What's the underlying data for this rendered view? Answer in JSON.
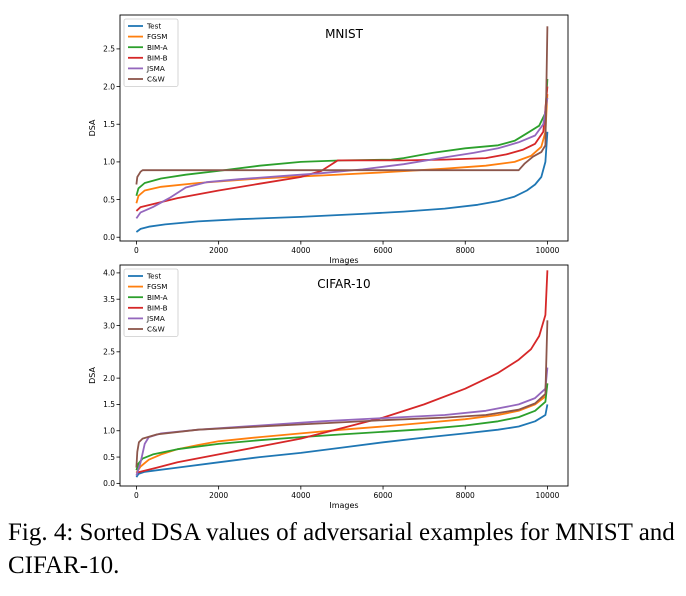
{
  "caption": {
    "label": "Fig. 4:",
    "text": "Sorted DSA values of adversarial examples for MNIST and CIFAR-10."
  },
  "colors": {
    "Test": "#1f77b4",
    "FGSM": "#ff7f0e",
    "BIM-A": "#2ca02c",
    "BIM-B": "#d62728",
    "JSMA": "#9467bd",
    "C&W": "#8c564b"
  },
  "chart_data": [
    {
      "type": "line",
      "title": "MNIST",
      "xlabel": "Images",
      "ylabel": "DSA",
      "xlim": [
        -400,
        10500
      ],
      "ylim": [
        -0.05,
        2.95
      ],
      "xticks": [
        0,
        2000,
        4000,
        6000,
        8000,
        10000
      ],
      "yticks": [
        0.0,
        0.5,
        1.0,
        1.5,
        2.0,
        2.5
      ],
      "ytick_labels": [
        "0.0",
        "0.5",
        "1.0",
        "1.5",
        "2.0",
        "2.5"
      ],
      "legend": "top-left",
      "grid": false,
      "series": [
        {
          "name": "Test",
          "points": [
            [
              0,
              0.07
            ],
            [
              100,
              0.11
            ],
            [
              300,
              0.14
            ],
            [
              700,
              0.17
            ],
            [
              1500,
              0.21
            ],
            [
              2500,
              0.24
            ],
            [
              4000,
              0.27
            ],
            [
              5500,
              0.31
            ],
            [
              6500,
              0.34
            ],
            [
              7500,
              0.38
            ],
            [
              8300,
              0.43
            ],
            [
              8800,
              0.48
            ],
            [
              9200,
              0.54
            ],
            [
              9500,
              0.62
            ],
            [
              9700,
              0.7
            ],
            [
              9850,
              0.8
            ],
            [
              9950,
              1.0
            ],
            [
              10000,
              1.4
            ]
          ]
        },
        {
          "name": "FGSM",
          "points": [
            [
              0,
              0.45
            ],
            [
              50,
              0.55
            ],
            [
              200,
              0.62
            ],
            [
              600,
              0.67
            ],
            [
              1500,
              0.72
            ],
            [
              3000,
              0.78
            ],
            [
              4500,
              0.82
            ],
            [
              6000,
              0.86
            ],
            [
              7500,
              0.91
            ],
            [
              8500,
              0.95
            ],
            [
              9200,
              1.0
            ],
            [
              9600,
              1.08
            ],
            [
              9850,
              1.2
            ],
            [
              9950,
              1.4
            ],
            [
              10000,
              1.9
            ]
          ]
        },
        {
          "name": "BIM-A",
          "points": [
            [
              0,
              0.55
            ],
            [
              50,
              0.65
            ],
            [
              200,
              0.72
            ],
            [
              600,
              0.78
            ],
            [
              1200,
              0.83
            ],
            [
              2000,
              0.88
            ],
            [
              3000,
              0.95
            ],
            [
              4000,
              1.0
            ],
            [
              5000,
              1.02
            ],
            [
              6200,
              1.03
            ],
            [
              6500,
              1.05
            ],
            [
              7200,
              1.12
            ],
            [
              8000,
              1.18
            ],
            [
              8800,
              1.22
            ],
            [
              9200,
              1.28
            ],
            [
              9500,
              1.38
            ],
            [
              9800,
              1.48
            ],
            [
              9950,
              1.65
            ],
            [
              10000,
              2.1
            ]
          ]
        },
        {
          "name": "BIM-B",
          "points": [
            [
              0,
              0.35
            ],
            [
              100,
              0.4
            ],
            [
              400,
              0.44
            ],
            [
              1000,
              0.52
            ],
            [
              2000,
              0.62
            ],
            [
              3000,
              0.71
            ],
            [
              4000,
              0.8
            ],
            [
              4500,
              0.88
            ],
            [
              4900,
              1.02
            ],
            [
              6500,
              1.02
            ],
            [
              7500,
              1.03
            ],
            [
              8500,
              1.05
            ],
            [
              9000,
              1.1
            ],
            [
              9400,
              1.16
            ],
            [
              9700,
              1.24
            ],
            [
              9900,
              1.4
            ],
            [
              10000,
              2.0
            ]
          ]
        },
        {
          "name": "JSMA",
          "points": [
            [
              0,
              0.25
            ],
            [
              100,
              0.33
            ],
            [
              400,
              0.4
            ],
            [
              800,
              0.52
            ],
            [
              1200,
              0.66
            ],
            [
              1700,
              0.73
            ],
            [
              2500,
              0.77
            ],
            [
              3500,
              0.81
            ],
            [
              4500,
              0.85
            ],
            [
              5500,
              0.9
            ],
            [
              6500,
              0.97
            ],
            [
              7500,
              1.06
            ],
            [
              8200,
              1.12
            ],
            [
              8800,
              1.18
            ],
            [
              9300,
              1.26
            ],
            [
              9700,
              1.35
            ],
            [
              9900,
              1.5
            ],
            [
              10000,
              1.85
            ]
          ]
        },
        {
          "name": "C&W",
          "points": [
            [
              0,
              0.7
            ],
            [
              20,
              0.8
            ],
            [
              100,
              0.87
            ],
            [
              150,
              0.89
            ],
            [
              9300,
              0.89
            ],
            [
              9450,
              0.98
            ],
            [
              9650,
              1.07
            ],
            [
              9850,
              1.13
            ],
            [
              9950,
              1.22
            ],
            [
              10000,
              2.8
            ]
          ]
        }
      ]
    },
    {
      "type": "line",
      "title": "CIFAR-10",
      "xlabel": "Images",
      "ylabel": "DSA",
      "xlim": [
        -400,
        10500
      ],
      "ylim": [
        -0.05,
        4.15
      ],
      "xticks": [
        0,
        2000,
        4000,
        6000,
        8000,
        10000
      ],
      "yticks": [
        0.0,
        0.5,
        1.0,
        1.5,
        2.0,
        2.5,
        3.0,
        3.5,
        4.0
      ],
      "ytick_labels": [
        "0.0",
        "0.5",
        "1.0",
        "1.5",
        "2.0",
        "2.5",
        "3.0",
        "3.5",
        "4.0"
      ],
      "legend": "top-left",
      "grid": false,
      "series": [
        {
          "name": "Test",
          "points": [
            [
              0,
              0.12
            ],
            [
              50,
              0.18
            ],
            [
              200,
              0.22
            ],
            [
              1000,
              0.3
            ],
            [
              2000,
              0.4
            ],
            [
              3000,
              0.5
            ],
            [
              4000,
              0.58
            ],
            [
              5000,
              0.68
            ],
            [
              6000,
              0.78
            ],
            [
              7000,
              0.87
            ],
            [
              8000,
              0.95
            ],
            [
              8800,
              1.02
            ],
            [
              9300,
              1.08
            ],
            [
              9700,
              1.18
            ],
            [
              9950,
              1.3
            ],
            [
              10000,
              1.5
            ]
          ]
        },
        {
          "name": "FGSM",
          "points": [
            [
              0,
              0.2
            ],
            [
              100,
              0.32
            ],
            [
              300,
              0.45
            ],
            [
              600,
              0.55
            ],
            [
              1000,
              0.65
            ],
            [
              1500,
              0.73
            ],
            [
              2000,
              0.8
            ],
            [
              3000,
              0.88
            ],
            [
              4000,
              0.95
            ],
            [
              5000,
              1.02
            ],
            [
              6000,
              1.08
            ],
            [
              7000,
              1.15
            ],
            [
              8000,
              1.22
            ],
            [
              8800,
              1.3
            ],
            [
              9300,
              1.38
            ],
            [
              9700,
              1.5
            ],
            [
              9950,
              1.65
            ],
            [
              10000,
              1.9
            ]
          ]
        },
        {
          "name": "BIM-A",
          "points": [
            [
              0,
              0.25
            ],
            [
              50,
              0.38
            ],
            [
              150,
              0.47
            ],
            [
              400,
              0.55
            ],
            [
              1000,
              0.65
            ],
            [
              2000,
              0.75
            ],
            [
              3000,
              0.82
            ],
            [
              4000,
              0.88
            ],
            [
              5000,
              0.93
            ],
            [
              6000,
              0.98
            ],
            [
              7000,
              1.03
            ],
            [
              8000,
              1.1
            ],
            [
              8800,
              1.18
            ],
            [
              9300,
              1.26
            ],
            [
              9700,
              1.38
            ],
            [
              9950,
              1.55
            ],
            [
              10000,
              1.9
            ]
          ]
        },
        {
          "name": "BIM-B",
          "points": [
            [
              0,
              0.2
            ],
            [
              500,
              0.3
            ],
            [
              1000,
              0.4
            ],
            [
              2000,
              0.55
            ],
            [
              3000,
              0.7
            ],
            [
              4000,
              0.85
            ],
            [
              5000,
              1.05
            ],
            [
              6000,
              1.25
            ],
            [
              7000,
              1.5
            ],
            [
              8000,
              1.8
            ],
            [
              8800,
              2.1
            ],
            [
              9300,
              2.35
            ],
            [
              9600,
              2.55
            ],
            [
              9800,
              2.8
            ],
            [
              9950,
              3.2
            ],
            [
              10000,
              4.05
            ]
          ]
        },
        {
          "name": "JSMA",
          "points": [
            [
              0,
              0.15
            ],
            [
              100,
              0.4
            ],
            [
              200,
              0.75
            ],
            [
              300,
              0.88
            ],
            [
              600,
              0.95
            ],
            [
              1500,
              1.02
            ],
            [
              3000,
              1.1
            ],
            [
              4500,
              1.18
            ],
            [
              6000,
              1.24
            ],
            [
              7500,
              1.3
            ],
            [
              8500,
              1.38
            ],
            [
              9300,
              1.5
            ],
            [
              9700,
              1.62
            ],
            [
              9950,
              1.8
            ],
            [
              10000,
              2.2
            ]
          ]
        },
        {
          "name": "C&W",
          "points": [
            [
              0,
              0.3
            ],
            [
              20,
              0.6
            ],
            [
              60,
              0.78
            ],
            [
              150,
              0.85
            ],
            [
              500,
              0.93
            ],
            [
              1500,
              1.02
            ],
            [
              3000,
              1.08
            ],
            [
              4500,
              1.14
            ],
            [
              6000,
              1.2
            ],
            [
              7500,
              1.25
            ],
            [
              8500,
              1.3
            ],
            [
              9300,
              1.4
            ],
            [
              9700,
              1.52
            ],
            [
              9950,
              1.7
            ],
            [
              10000,
              3.1
            ]
          ]
        }
      ]
    }
  ]
}
